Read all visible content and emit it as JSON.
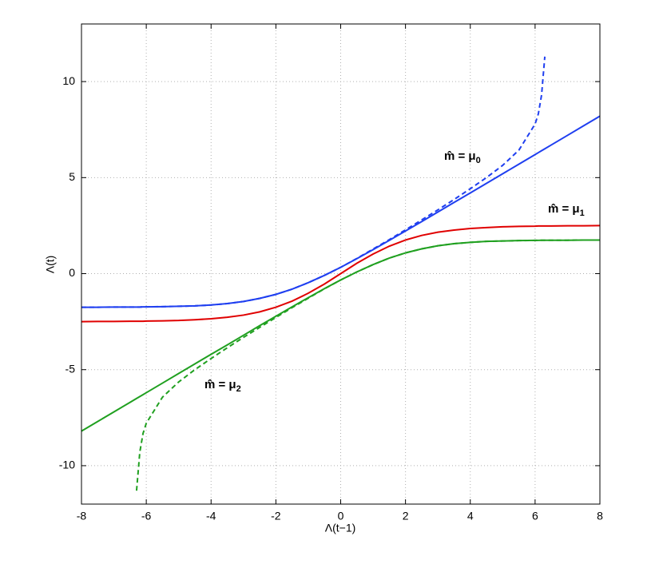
{
  "chart_data": {
    "type": "line",
    "xlabel": "Λ(t−1)",
    "ylabel": "Λ(t)",
    "x": [
      -8,
      -7.5,
      -7,
      -6.5,
      -6.3,
      -6.2,
      -6.1,
      -6,
      -5.5,
      -5,
      -4.5,
      -4,
      -3.5,
      -3,
      -2.5,
      -2,
      -1.5,
      -1,
      -0.5,
      0,
      0.5,
      1,
      1.5,
      2,
      2.5,
      3,
      3.5,
      4,
      4.5,
      5,
      5.5,
      6,
      6.1,
      6.2,
      6.3,
      6.5,
      7,
      7.5,
      8
    ],
    "series": [
      {
        "color": "#1f3ff0",
        "style": "solid",
        "values": [
          -1.75,
          -1.75,
          -1.74,
          -1.74,
          -1.74,
          -1.74,
          -1.73,
          -1.73,
          -1.72,
          -1.7,
          -1.68,
          -1.63,
          -1.56,
          -1.45,
          -1.29,
          -1.08,
          -0.81,
          -0.47,
          -0.09,
          0.33,
          0.78,
          1.25,
          1.73,
          2.22,
          2.71,
          3.21,
          3.71,
          4.2,
          4.7,
          5.2,
          5.7,
          6.2,
          6.3,
          6.4,
          6.5,
          6.7,
          7.2,
          7.7,
          8.2
        ]
      },
      {
        "color": "#1f3ff0",
        "style": "dashed",
        "values": [
          -1.75,
          -1.75,
          -1.74,
          -1.74,
          -1.74,
          -1.74,
          -1.73,
          -1.73,
          -1.72,
          -1.7,
          -1.68,
          -1.63,
          -1.56,
          -1.45,
          -1.29,
          -1.08,
          -0.81,
          -0.47,
          -0.09,
          0.33,
          0.79,
          1.28,
          1.77,
          2.28,
          2.8,
          3.32,
          3.86,
          4.42,
          5.0,
          5.64,
          6.43,
          7.79,
          8.32,
          9.3,
          11.3,
          null,
          null,
          null,
          null
        ]
      },
      {
        "color": "#e00000",
        "style": "solid",
        "values": [
          -2.5,
          -2.49,
          -2.49,
          -2.48,
          -2.48,
          -2.48,
          -2.48,
          -2.47,
          -2.46,
          -2.44,
          -2.4,
          -2.35,
          -2.27,
          -2.16,
          -1.99,
          -1.75,
          -1.43,
          -1.02,
          -0.54,
          0,
          0.54,
          1.02,
          1.43,
          1.75,
          1.99,
          2.16,
          2.27,
          2.35,
          2.4,
          2.44,
          2.46,
          2.47,
          2.48,
          2.48,
          2.48,
          2.48,
          2.49,
          2.49,
          2.5
        ]
      },
      {
        "color": "#20a020",
        "style": "solid",
        "values": [
          -8.2,
          -7.7,
          -7.2,
          -6.7,
          -6.5,
          -6.4,
          -6.3,
          -6.2,
          -5.7,
          -5.2,
          -4.7,
          -4.2,
          -3.71,
          -3.21,
          -2.71,
          -2.22,
          -1.73,
          -1.25,
          -0.78,
          -0.33,
          0.09,
          0.47,
          0.81,
          1.08,
          1.29,
          1.45,
          1.56,
          1.63,
          1.68,
          1.7,
          1.72,
          1.73,
          1.73,
          1.74,
          1.74,
          1.74,
          1.74,
          1.75,
          1.75
        ]
      },
      {
        "color": "#20a020",
        "style": "dashed",
        "values": [
          null,
          null,
          null,
          null,
          -11.3,
          -9.3,
          -8.32,
          -7.79,
          -6.43,
          -5.64,
          -5.0,
          -4.42,
          -3.86,
          -3.32,
          -2.8,
          -2.28,
          -1.77,
          -1.28,
          -0.79,
          -0.33,
          0.09,
          0.47,
          0.81,
          1.08,
          1.29,
          1.45,
          1.56,
          1.63,
          1.68,
          1.7,
          1.72,
          1.73,
          1.73,
          1.74,
          1.74,
          1.74,
          1.74,
          1.75,
          1.75
        ]
      }
    ],
    "annotations": [
      {
        "text": "m̂ = μ",
        "subscript": "0"
      },
      {
        "text": "m̂ = μ",
        "subscript": "1"
      },
      {
        "text": "m̂ = μ",
        "subscript": "2"
      }
    ],
    "xlim": [
      -8,
      8
    ],
    "ylim": [
      -12,
      13
    ],
    "xticks": [
      -8,
      -6,
      -4,
      -2,
      0,
      2,
      4,
      6,
      8
    ],
    "yticks": [
      -10,
      -5,
      0,
      5,
      10
    ],
    "grid": true
  }
}
